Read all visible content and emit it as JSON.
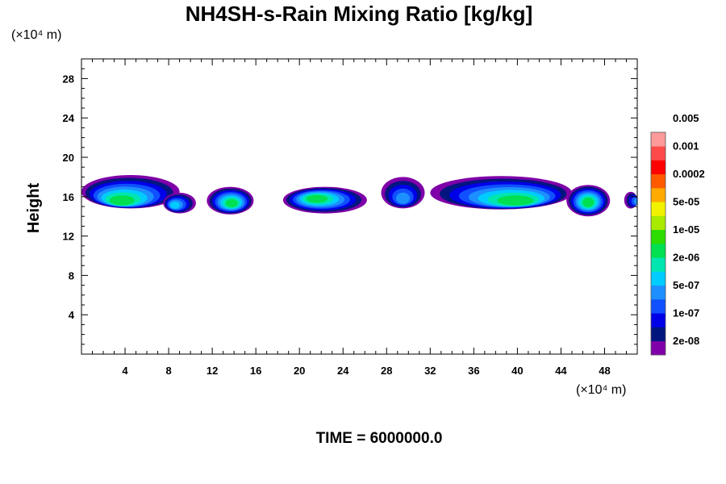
{
  "chart_data": {
    "type": "heatmap",
    "title": "NH4SH-s-Rain Mixing Ratio [kg/kg]",
    "ylabel": "Height",
    "x_unit_label": "(×10⁴ m)",
    "y_unit_label": "(×10⁴ m)",
    "time_label": "TIME = 6000000.0",
    "xlim": [
      0,
      51
    ],
    "ylim": [
      0,
      30
    ],
    "x_ticks": [
      4,
      8,
      12,
      16,
      20,
      24,
      28,
      32,
      36,
      40,
      44,
      48
    ],
    "y_ticks": [
      4,
      8,
      12,
      16,
      20,
      24,
      28
    ],
    "colorbar": {
      "colors": [
        "#7f00a8",
        "#00157f",
        "#0000e8",
        "#1050ff",
        "#1d8fff",
        "#00ccff",
        "#00e6b0",
        "#00e050",
        "#2ddc00",
        "#a8ea00",
        "#f2f200",
        "#ffaa00",
        "#ff5a00",
        "#ff0000",
        "#ff4a4a",
        "#ff9a9a"
      ],
      "labels": [
        "2e-08",
        "1e-07",
        "5e-07",
        "2e-06",
        "1e-05",
        "5e-05",
        "0.0002",
        "0.001",
        "0.005"
      ]
    },
    "cells": [
      {
        "x": [
          0,
          9
        ],
        "y": [
          14.8,
          18.2
        ],
        "peak_x": 3.6,
        "peak_y": 15.5,
        "level": 7
      },
      {
        "x": [
          7.5,
          10.5
        ],
        "y": [
          14.3,
          16.4
        ],
        "peak_x": 8.5,
        "peak_y": 15.1,
        "level": 5
      },
      {
        "x": [
          11.5,
          15.8
        ],
        "y": [
          14.2,
          17.0
        ],
        "peak_x": 13.8,
        "peak_y": 15.3,
        "level": 7
      },
      {
        "x": [
          18.5,
          26.2
        ],
        "y": [
          14.3,
          17.0
        ],
        "peak_x": 21.5,
        "peak_y": 15.8,
        "level": 7
      },
      {
        "x": [
          27.5,
          31.5
        ],
        "y": [
          14.8,
          18.0
        ],
        "peak_x": 29.5,
        "peak_y": 15.7,
        "level": 4
      },
      {
        "x": [
          32.0,
          45.0
        ],
        "y": [
          14.7,
          18.1
        ],
        "peak_x": 40.0,
        "peak_y": 15.5,
        "level": 7
      },
      {
        "x": [
          44.5,
          48.5
        ],
        "y": [
          14.0,
          17.2
        ],
        "peak_x": 46.5,
        "peak_y": 15.4,
        "level": 7
      },
      {
        "x": [
          49.8,
          51
        ],
        "y": [
          14.8,
          16.5
        ],
        "peak_x": 51,
        "peak_y": 15.5,
        "level": 4
      }
    ]
  }
}
